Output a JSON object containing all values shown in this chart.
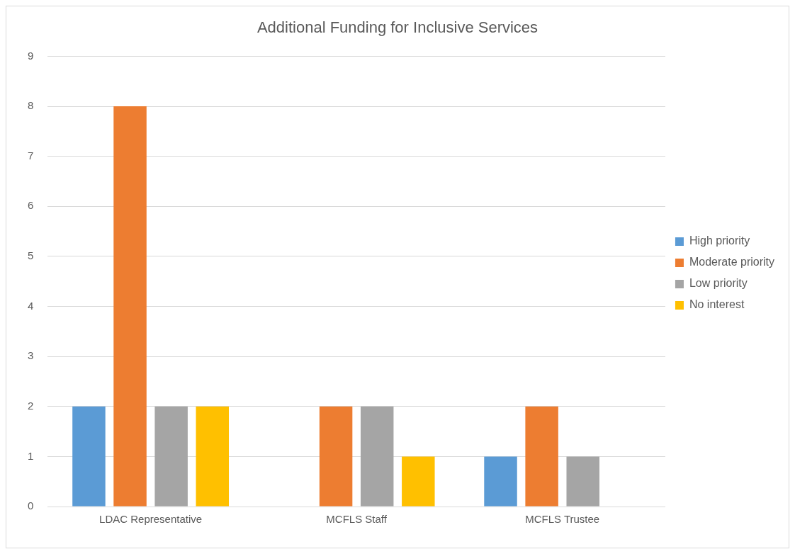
{
  "chart_data": {
    "type": "bar",
    "title": "Additional Funding for Inclusive Services",
    "categories": [
      "LDAC Representative",
      "MCFLS Staff",
      "MCFLS Trustee"
    ],
    "series": [
      {
        "name": "High priority",
        "color": "#5b9bd5",
        "values": [
          2,
          0,
          1
        ]
      },
      {
        "name": "Moderate priority",
        "color": "#ed7d31",
        "values": [
          8,
          2,
          2
        ]
      },
      {
        "name": "Low priority",
        "color": "#a5a5a5",
        "values": [
          2,
          2,
          1
        ]
      },
      {
        "name": "No interest",
        "color": "#ffc000",
        "values": [
          2,
          1,
          0
        ]
      }
    ],
    "ylim": [
      0,
      9
    ],
    "yticks": [
      0,
      1,
      2,
      3,
      4,
      5,
      6,
      7,
      8,
      9
    ],
    "grid": "y",
    "legend": "right"
  }
}
